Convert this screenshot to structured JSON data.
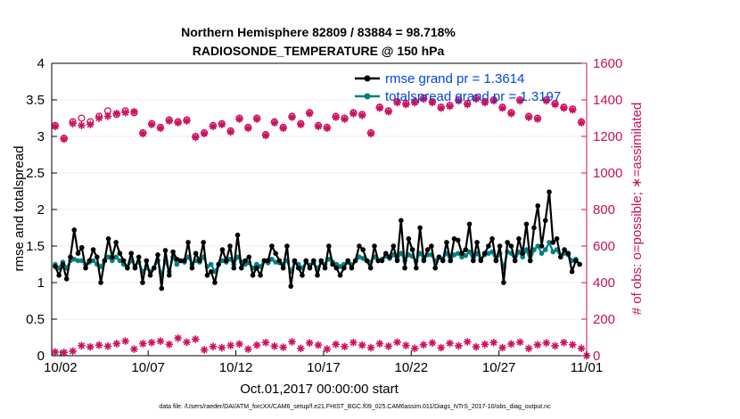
{
  "chart_data": {
    "type": "line",
    "title": "Northern Hemisphere 82809 / 83884 = 98.718%",
    "subtitle": "RADIOSONDE_TEMPERATURE @ 150 hPa",
    "xlabel": "Oct.01,2017 00:00:00 start",
    "ylabel_left": "rmse and totalspread",
    "ylabel_right": "# of obs: o=possible; ∗=assimilated",
    "x_ticks": [
      "10/02",
      "10/07",
      "10/12",
      "10/17",
      "10/22",
      "10/27",
      "11/01"
    ],
    "x_tick_days": [
      1,
      6,
      11,
      16,
      21,
      26,
      31
    ],
    "xlim": [
      0.5,
      31
    ],
    "ylim_left": [
      0,
      4
    ],
    "ylim_right": [
      0,
      1600
    ],
    "yticks_left": [
      "0",
      "0.5",
      "1",
      "1.5",
      "2",
      "2.5",
      "3",
      "3.5",
      "4"
    ],
    "yticks_right": [
      "0",
      "200",
      "400",
      "600",
      "800",
      "1000",
      "1200",
      "1400",
      "1600"
    ],
    "footnote": "data file: /Users/raeder/DAI/ATM_forcXX/CAM6_setup/f.e21.FHIST_BGC.f09_025.CAM6assim.011/Diags_NTrS_2017-10/obs_diag_output.nc",
    "colors": {
      "rmse": "#000000",
      "spread": "#00807f",
      "obs": "#cc1060",
      "legend_text": "#0047e0"
    },
    "legend": [
      {
        "name": "rmse grand pr = 1.3614"
      },
      {
        "name": "totalspread grand pr = 1.3197"
      }
    ],
    "series": [
      {
        "name": "rmse",
        "axis": "left",
        "values": [
          1.22,
          1.1,
          1.25,
          1.05,
          1.35,
          1.72,
          1.4,
          1.48,
          1.2,
          1.3,
          1.45,
          1.35,
          1.0,
          1.3,
          1.6,
          1.35,
          1.55,
          1.4,
          1.3,
          1.2,
          1.4,
          1.2,
          1.35,
          1.0,
          1.3,
          1.1,
          1.2,
          1.38,
          0.92,
          1.44,
          1.1,
          1.42,
          1.32,
          1.3,
          1.3,
          1.55,
          1.2,
          1.4,
          1.3,
          1.55,
          1.1,
          1.15,
          1.0,
          1.25,
          1.45,
          1.3,
          1.5,
          1.2,
          1.65,
          1.2,
          1.3,
          1.35,
          1.1,
          1.2,
          1.1,
          1.3,
          1.3,
          1.5,
          1.4,
          1.3,
          1.2,
          1.5,
          0.95,
          1.3,
          1.2,
          1.1,
          1.3,
          1.2,
          1.3,
          1.1,
          1.3,
          1.2,
          1.5,
          1.25,
          1.2,
          1.1,
          1.2,
          1.3,
          1.2,
          1.3,
          1.5,
          1.45,
          1.3,
          1.2,
          1.5,
          1.3,
          1.3,
          1.4,
          1.35,
          1.5,
          1.3,
          1.85,
          1.2,
          1.6,
          1.45,
          1.2,
          1.75,
          1.3,
          1.45,
          1.5,
          1.2,
          1.35,
          1.3,
          1.55,
          1.3,
          1.6,
          1.58,
          1.4,
          1.45,
          1.8,
          1.3,
          1.55,
          1.3,
          1.4,
          1.5,
          1.6,
          1.3,
          1.5,
          1.0,
          1.55,
          1.5,
          1.3,
          1.6,
          1.4,
          1.8,
          1.3,
          1.75,
          2.05,
          1.5,
          1.85,
          2.24,
          1.55,
          1.6,
          1.35,
          1.45,
          1.4,
          1.15,
          1.3,
          1.25
        ]
      },
      {
        "name": "totalspread",
        "axis": "left",
        "values": [
          1.25,
          1.2,
          1.28,
          1.2,
          1.3,
          1.32,
          1.3,
          1.3,
          1.25,
          1.28,
          1.3,
          1.25,
          1.22,
          1.3,
          1.35,
          1.3,
          1.35,
          1.3,
          1.25,
          1.2,
          1.3,
          1.22,
          1.28,
          1.15,
          1.2,
          1.15,
          1.2,
          1.3,
          1.1,
          1.3,
          1.15,
          1.35,
          1.25,
          1.3,
          1.28,
          1.35,
          1.25,
          1.3,
          1.28,
          1.35,
          1.22,
          1.25,
          1.15,
          1.25,
          1.3,
          1.28,
          1.32,
          1.25,
          1.35,
          1.28,
          1.25,
          1.27,
          1.2,
          1.25,
          1.22,
          1.3,
          1.27,
          1.32,
          1.28,
          1.27,
          1.25,
          1.3,
          1.15,
          1.28,
          1.25,
          1.2,
          1.28,
          1.24,
          1.27,
          1.2,
          1.28,
          1.25,
          1.32,
          1.28,
          1.25,
          1.22,
          1.25,
          1.28,
          1.25,
          1.3,
          1.35,
          1.33,
          1.3,
          1.28,
          1.35,
          1.3,
          1.32,
          1.36,
          1.33,
          1.38,
          1.32,
          1.4,
          1.3,
          1.38,
          1.36,
          1.3,
          1.4,
          1.32,
          1.38,
          1.38,
          1.3,
          1.35,
          1.32,
          1.4,
          1.3,
          1.38,
          1.4,
          1.35,
          1.37,
          1.42,
          1.3,
          1.4,
          1.32,
          1.38,
          1.4,
          1.42,
          1.3,
          1.4,
          1.2,
          1.42,
          1.4,
          1.3,
          1.42,
          1.35,
          1.45,
          1.3,
          1.45,
          1.5,
          1.4,
          1.45,
          1.55,
          1.42,
          1.45,
          1.35,
          1.4,
          1.38,
          1.3,
          1.32,
          1.25
        ]
      },
      {
        "name": "possible",
        "axis": "right",
        "days": [
          0.7,
          1.2,
          1.7,
          2.2,
          2.7,
          3.2,
          3.7,
          4.2,
          4.7,
          5.2,
          5.7,
          6.2,
          6.7,
          7.2,
          7.7,
          8.2,
          8.7,
          9.2,
          9.7,
          10.2,
          10.7,
          11.2,
          11.7,
          12.2,
          12.7,
          13.2,
          13.7,
          14.2,
          14.7,
          15.2,
          15.7,
          16.2,
          16.7,
          17.2,
          17.7,
          18.2,
          18.7,
          19.2,
          19.7,
          20.2,
          20.7,
          21.2,
          21.7,
          22.2,
          22.7,
          23.2,
          23.7,
          24.2,
          24.7,
          25.2,
          25.7,
          26.2,
          26.7,
          27.2,
          27.7,
          28.2,
          28.7,
          29.2,
          29.7,
          30.2,
          30.7
        ],
        "values": [
          1260,
          1190,
          1280,
          1300,
          1280,
          1310,
          1340,
          1320,
          1340,
          1330,
          1220,
          1270,
          1250,
          1290,
          1280,
          1290,
          1200,
          1220,
          1260,
          1270,
          1230,
          1300,
          1250,
          1300,
          1210,
          1280,
          1250,
          1310,
          1270,
          1330,
          1260,
          1250,
          1310,
          1300,
          1330,
          1320,
          1220,
          1360,
          1340,
          1390,
          1380,
          1390,
          1410,
          1390,
          1360,
          1370,
          1400,
          1380,
          1410,
          1390,
          1400,
          1360,
          1330,
          1400,
          1310,
          1300,
          1400,
          1380,
          1360,
          1350,
          1280
        ],
        "marker": "o"
      },
      {
        "name": "assimilated",
        "axis": "right",
        "days": [
          0.7,
          1.2,
          1.7,
          2.2,
          2.7,
          3.2,
          3.7,
          4.2,
          4.7,
          5.2,
          5.7,
          6.2,
          6.7,
          7.2,
          7.7,
          8.2,
          8.7,
          9.2,
          9.7,
          10.2,
          10.7,
          11.2,
          11.7,
          12.2,
          12.7,
          13.2,
          13.7,
          14.2,
          14.7,
          15.2,
          15.7,
          16.2,
          16.7,
          17.2,
          17.7,
          18.2,
          18.7,
          19.2,
          19.7,
          20.2,
          20.7,
          21.2,
          21.7,
          22.2,
          22.7,
          23.2,
          23.7,
          24.2,
          24.7,
          25.2,
          25.7,
          26.2,
          26.7,
          27.2,
          27.7,
          28.2,
          28.7,
          29.2,
          29.7,
          30.2,
          30.7
        ],
        "values": [
          1255,
          1185,
          1270,
          1260,
          1265,
          1300,
          1310,
          1325,
          1330,
          1335,
          1215,
          1265,
          1245,
          1285,
          1275,
          1285,
          1195,
          1215,
          1255,
          1265,
          1225,
          1295,
          1245,
          1295,
          1205,
          1275,
          1245,
          1305,
          1265,
          1325,
          1255,
          1245,
          1305,
          1295,
          1325,
          1315,
          1215,
          1355,
          1335,
          1385,
          1375,
          1385,
          1405,
          1385,
          1355,
          1365,
          1395,
          1375,
          1405,
          1385,
          1395,
          1355,
          1325,
          1395,
          1305,
          1295,
          1395,
          1375,
          1355,
          1345,
          1275
        ],
        "marker": "*"
      },
      {
        "name": "possible-bottom",
        "axis": "right",
        "days": [
          0.7,
          1.2,
          1.7,
          2.2,
          2.7,
          3.2,
          3.7,
          4.2,
          4.7,
          5.2,
          5.7,
          6.2,
          6.7,
          7.2,
          7.7,
          8.2,
          8.7,
          9.2,
          9.7,
          10.2,
          10.7,
          11.2,
          11.7,
          12.2,
          12.7,
          13.2,
          13.7,
          14.2,
          14.7,
          15.2,
          15.7,
          16.2,
          16.7,
          17.2,
          17.7,
          18.2,
          18.7,
          19.2,
          19.7,
          20.2,
          20.7,
          21.2,
          21.7,
          22.2,
          22.7,
          23.2,
          23.7,
          24.2,
          24.7,
          25.2,
          25.7,
          26.2,
          26.7,
          27.2,
          27.7,
          28.2,
          28.7,
          29.2,
          29.7,
          30.2,
          30.7,
          31.0
        ],
        "values": [
          20,
          18,
          25,
          55,
          48,
          58,
          52,
          66,
          80,
          36,
          66,
          72,
          80,
          62,
          96,
          74,
          90,
          32,
          50,
          44,
          56,
          64,
          36,
          58,
          72,
          52,
          46,
          76,
          40,
          70,
          58,
          36,
          62,
          50,
          72,
          58,
          44,
          66,
          52,
          74,
          56,
          40,
          60,
          70,
          44,
          68,
          54,
          76,
          48,
          62,
          72,
          44,
          64,
          74,
          40,
          60,
          70,
          54,
          72,
          60,
          40,
          0
        ],
        "marker": "*"
      }
    ]
  }
}
